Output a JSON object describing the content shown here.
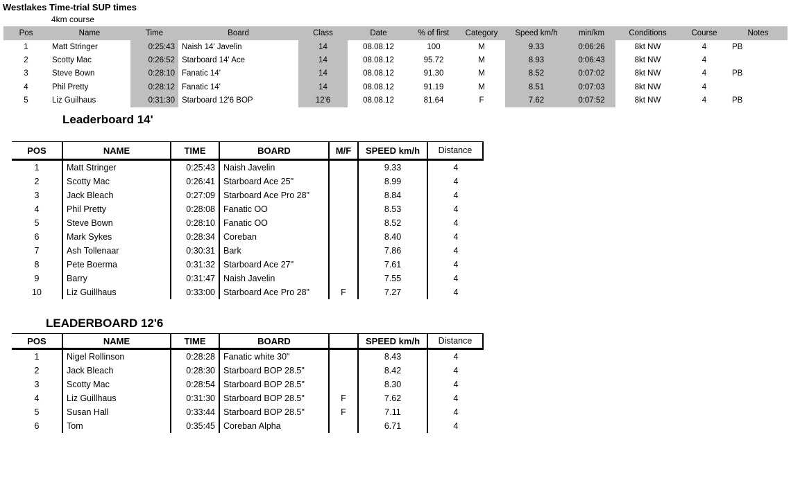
{
  "page": {
    "title": "Westlakes Time-trial SUP times",
    "subtitle": "4km course"
  },
  "colors": {
    "header_fill": "#bfbfbf",
    "shaded_cell_fill": "#bfbfbf",
    "border": "#000000",
    "text": "#000000"
  },
  "results_table": {
    "columns": [
      "Pos",
      "Name",
      "Time",
      "Board",
      "Class",
      "Date",
      "% of first",
      "Category",
      "Speed km/h",
      "min/km",
      "Conditions",
      "Course",
      "Notes"
    ],
    "rows": [
      [
        "1",
        "Matt Stringer",
        "0:25:43",
        "Naish 14' Javelin",
        "14",
        "08.08.12",
        "100",
        "M",
        "9.33",
        "0:06:26",
        "8kt NW",
        "4",
        "PB"
      ],
      [
        "2",
        "Scotty Mac",
        "0:26:52",
        "Starboard 14' Ace",
        "14",
        "08.08.12",
        "95.72",
        "M",
        "8.93",
        "0:06:43",
        "8kt NW",
        "4",
        ""
      ],
      [
        "3",
        "Steve Bown",
        "0:28:10",
        "Fanatic 14'",
        "14",
        "08.08.12",
        "91.30",
        "M",
        "8.52",
        "0:07:02",
        "8kt NW",
        "4",
        "PB"
      ],
      [
        "4",
        "Phil Pretty",
        "0:28:12",
        "Fanatic 14'",
        "14",
        "08.08.12",
        "91.19",
        "M",
        "8.51",
        "0:07:03",
        "8kt NW",
        "4",
        ""
      ],
      [
        "5",
        "Liz Guilhaus",
        "0:31:30",
        "Starboard 12'6 BOP",
        "12'6",
        "08.08.12",
        "81.64",
        "F",
        "7.62",
        "0:07:52",
        "8kt NW",
        "4",
        "PB"
      ]
    ]
  },
  "leaderboard_14": {
    "title": "Leaderboard 14'",
    "columns": [
      "POS",
      "NAME",
      "TIME",
      "BOARD",
      "M/F",
      "SPEED km/h",
      "Distance"
    ],
    "rows": [
      [
        "1",
        "Matt Stringer",
        "0:25:43",
        "Naish Javelin",
        "",
        "9.33",
        "4"
      ],
      [
        "2",
        "Scotty Mac",
        "0:26:41",
        "Starboard Ace 25\"",
        "",
        "8.99",
        "4"
      ],
      [
        "3",
        "Jack Bleach",
        "0:27:09",
        "Starboard Ace Pro 28\"",
        "",
        "8.84",
        "4"
      ],
      [
        "4",
        "Phil Pretty",
        "0:28:08",
        "Fanatic OO",
        "",
        "8.53",
        "4"
      ],
      [
        "5",
        "Steve Bown",
        "0:28:10",
        "Fanatic OO",
        "",
        "8.52",
        "4"
      ],
      [
        "6",
        "Mark Sykes",
        "0:28:34",
        "Coreban",
        "",
        "8.40",
        "4"
      ],
      [
        "7",
        "Ash Tollenaar",
        "0:30:31",
        "Bark",
        "",
        "7.86",
        "4"
      ],
      [
        "8",
        "Pete Boerma",
        "0:31:32",
        "Starboard Ace 27\"",
        "",
        "7.61",
        "4"
      ],
      [
        "9",
        "Barry",
        "0:31:47",
        "Naish Javelin",
        "",
        "7.55",
        "4"
      ],
      [
        "10",
        "Liz Guillhaus",
        "0:33:00",
        "Starboard Ace Pro 28\"",
        "F",
        "7.27",
        "4"
      ]
    ]
  },
  "leaderboard_126": {
    "title": "LEADERBOARD 12'6",
    "columns": [
      "POS",
      "NAME",
      "TIME",
      "BOARD",
      "",
      "SPEED km/h",
      "Distance"
    ],
    "rows": [
      [
        "1",
        "Nigel Rollinson",
        "0:28:28",
        "Fanatic white 30\"",
        "",
        "8.43",
        "4"
      ],
      [
        "2",
        "Jack Bleach",
        "0:28:30",
        "Starboard BOP 28.5\"",
        "",
        "8.42",
        "4"
      ],
      [
        "3",
        "Scotty Mac",
        "0:28:54",
        "Starboard BOP 28.5\"",
        "",
        "8.30",
        "4"
      ],
      [
        "4",
        "Liz Guillhaus",
        "0:31:30",
        "Starboard BOP 28.5\"",
        "F",
        "7.62",
        "4"
      ],
      [
        "5",
        "Susan Hall",
        "0:33:44",
        "Starboard BOP 28.5\"",
        "F",
        "7.11",
        "4"
      ],
      [
        "6",
        "Tom",
        "0:35:45",
        "Coreban Alpha",
        "",
        "6.71",
        "4"
      ]
    ]
  }
}
